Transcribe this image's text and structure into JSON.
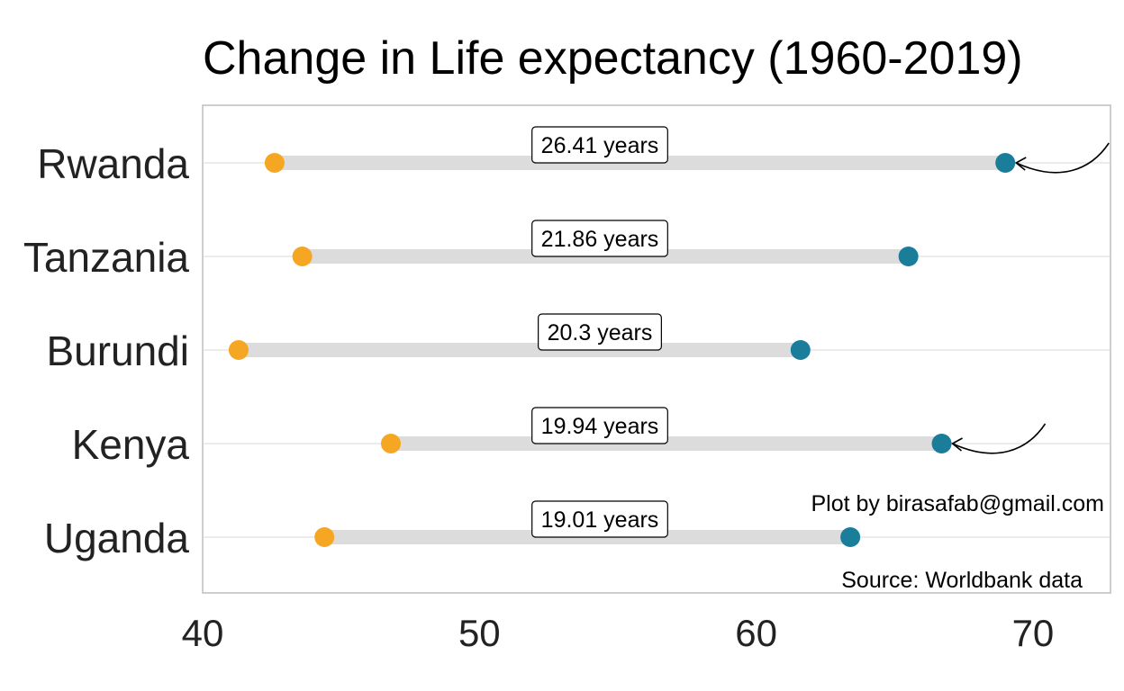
{
  "chart_data": {
    "type": "dumbbell",
    "title": "Change in Life expectancy (1960-2019)",
    "xlabel": "",
    "ylabel": "",
    "xlim": [
      40,
      72.8
    ],
    "xticks": [
      "40",
      "50",
      "60",
      "70"
    ],
    "grid": "horizontal",
    "categories": [
      "Rwanda",
      "Tanzania",
      "Burundi",
      "Kenya",
      "Uganda"
    ],
    "series": [
      {
        "values": [
          42.6,
          43.6,
          41.3,
          46.8,
          44.4
        ]
      },
      {
        "values": [
          69.0,
          65.5,
          61.6,
          66.7,
          63.4
        ]
      }
    ],
    "difference_labels": [
      "26.41 years",
      "21.86 years",
      "20.3 years",
      "19.94 years",
      "19.01 years"
    ],
    "highlighted": [
      "Rwanda",
      "Kenya"
    ],
    "colors": {
      "start": "#F5A623",
      "end": "#1A7D9A",
      "segment": "#DCDCDC",
      "grid": "#D9D9D9",
      "panel_border": "#BDBDBD"
    }
  },
  "annotations": {
    "credit": "Plot by birasafab@gmail.com",
    "source": "Source: Worldbank data"
  }
}
